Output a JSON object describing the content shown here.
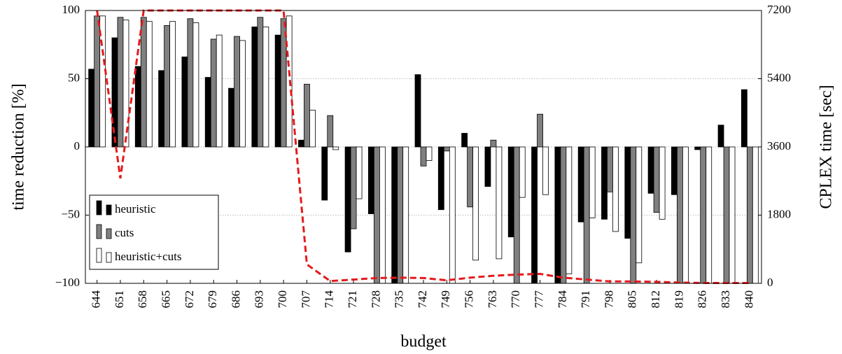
{
  "chart_data": {
    "type": "bar",
    "x_label": "budget",
    "y_label": "time reduction [%]",
    "y2_label": "CPLEX time [sec]",
    "categories": [
      "644",
      "651",
      "658",
      "665",
      "672",
      "679",
      "686",
      "693",
      "700",
      "707",
      "714",
      "721",
      "728",
      "735",
      "742",
      "749",
      "756",
      "763",
      "770",
      "777",
      "784",
      "791",
      "798",
      "805",
      "812",
      "819",
      "826",
      "833",
      "840"
    ],
    "series": [
      {
        "name": "heuristic",
        "color": "#000000",
        "values": [
          57,
          80,
          59,
          56,
          66,
          51,
          43,
          88,
          82,
          5,
          -39,
          -77,
          -49,
          -100,
          53,
          -46,
          10,
          -29,
          -66,
          -100,
          -100,
          -55,
          -53,
          -67,
          -34,
          -35,
          -2,
          16,
          42
        ]
      },
      {
        "name": "cuts",
        "color": "#808080",
        "values": [
          96,
          95,
          95,
          89,
          94,
          79,
          81,
          95,
          94,
          46,
          23,
          -60,
          -100,
          -100,
          -14,
          -3,
          -44,
          5,
          -100,
          24,
          -100,
          -100,
          -33,
          -100,
          -48,
          -100,
          -100,
          -100,
          -100
        ]
      },
      {
        "name": "heuristic+cuts",
        "color": "#ffffff",
        "values": [
          96,
          93,
          92,
          92,
          91,
          82,
          78,
          88,
          96,
          27,
          -2,
          -38,
          -100,
          -100,
          -10,
          -100,
          -83,
          -82,
          -37,
          -35,
          -93,
          -52,
          -62,
          -85,
          -53,
          -100,
          -100,
          -100,
          -100
        ]
      },
      {
        "type": "line",
        "axis": "y2",
        "color": "#e41a1c",
        "values": [
          7200,
          2770,
          7200,
          7200,
          7200,
          7200,
          7200,
          7200,
          7200,
          500,
          60,
          100,
          140,
          150,
          140,
          80,
          150,
          200,
          230,
          250,
          150,
          100,
          50,
          50,
          40,
          20,
          10,
          10,
          10
        ]
      }
    ],
    "ylim": [
      -100,
      100
    ],
    "yticks": [
      {
        "value": -100,
        "label": "−100"
      },
      {
        "value": -50,
        "label": "−50"
      },
      0,
      50,
      100
    ],
    "y2lim": [
      0,
      7200
    ],
    "y2ticks": [
      0,
      1800,
      3600,
      5400,
      7200
    ],
    "grid": true,
    "legend": "lower left"
  }
}
